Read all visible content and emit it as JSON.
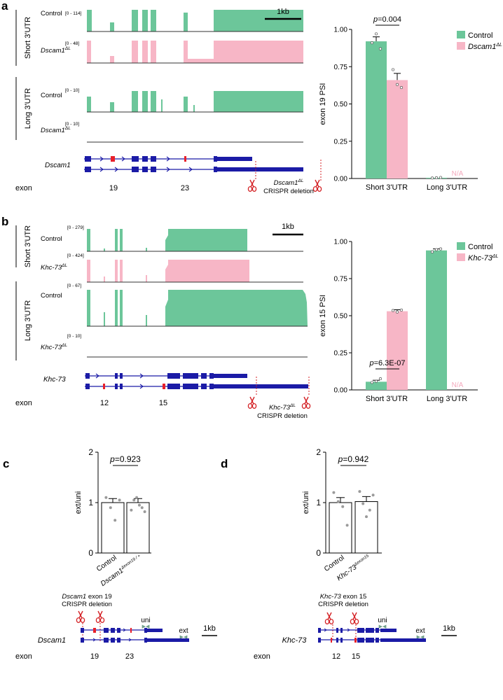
{
  "colors": {
    "control": "#6cc69a",
    "mutant": "#f7b6c6",
    "gene": "#1b1ba6",
    "exon_highlight": "#e8202a",
    "scissors": "#d42226",
    "primer": "#6f9e8a",
    "na_text": "#f4a9bd",
    "dots": "#9a9a9a"
  },
  "panel_a": {
    "label": "a",
    "short_group": "Short 3'UTR",
    "long_group": "Long 3'UTR",
    "tracks": [
      {
        "name": "Control",
        "sup": "",
        "scale": "[0 - 114]"
      },
      {
        "name": "Dscam1",
        "sup": "ΔL",
        "scale": "[0 - 48]"
      },
      {
        "name": "Control",
        "sup": "",
        "scale": "[0 - 10]"
      },
      {
        "name": "Dscam1",
        "sup": "ΔL",
        "scale": "[0 - 10]"
      }
    ],
    "scalebar": "1kb",
    "gene": "Dscam1",
    "exon_label": "exon",
    "exon_numbers": [
      "19",
      "23"
    ],
    "deletion_gene": "Dscam1",
    "deletion_sup": "ΔL",
    "deletion_text": "CRISPR deletion"
  },
  "panel_b": {
    "label": "b",
    "short_group": "Short 3'UTR",
    "long_group": "Long 3'UTR",
    "tracks": [
      {
        "name": "Control",
        "sup": "",
        "scale": "[0 - 279]"
      },
      {
        "name": "Khc-73",
        "sup": "ΔL",
        "scale": "[0 - 424]"
      },
      {
        "name": "Control",
        "sup": "",
        "scale": "[0 - 67]"
      },
      {
        "name": "Khc-73",
        "sup": "ΔL",
        "scale": "[0 - 10]"
      }
    ],
    "scalebar": "1kb",
    "gene": "Khc-73",
    "exon_label": "exon",
    "exon_numbers": [
      "12",
      "15"
    ],
    "deletion_gene": "Khc-73",
    "deletion_sup": "ΔL",
    "deletion_text": "CRISPR deletion"
  },
  "panel_c": {
    "label": "c",
    "deletion_gene": "Dscam1",
    "deletion_exon": "exon 19",
    "deletion_text": "CRISPR deletion",
    "uni": "uni",
    "ext": "ext",
    "scalebar": "1kb",
    "gene": "Dscam1",
    "exon_label": "exon",
    "exon_numbers": [
      "19",
      "23"
    ]
  },
  "panel_d": {
    "label": "d",
    "deletion_gene": "Khc-73",
    "deletion_exon": "exon 15",
    "deletion_text": "CRISPR deletion",
    "uni": "uni",
    "ext": "ext",
    "scalebar": "1kb",
    "gene": "Khc-73",
    "exon_label": "exon",
    "exon_numbers": [
      "12",
      "15"
    ]
  },
  "chart_data": [
    {
      "id": "a",
      "type": "bar",
      "ylabel": "exon 19 PSI",
      "ylim": [
        0,
        1.0
      ],
      "yticks": [
        "0.00",
        "0.25",
        "0.50",
        "0.75",
        "1.00"
      ],
      "categories": [
        "Short 3'UTR",
        "Long 3'UTR"
      ],
      "series": [
        {
          "name": "Control",
          "values": [
            0.92,
            0.005
          ],
          "errors": [
            0.03,
            0
          ]
        },
        {
          "name": "Dscam1",
          "name_sup": "ΔL",
          "values": [
            0.66,
            null
          ],
          "errors": [
            0.045,
            0
          ]
        }
      ],
      "points": [
        [
          [
            0.91,
            0.97,
            0.87
          ],
          [
            0.003,
            0.005,
            0.007
          ]
        ],
        [
          [
            0.73,
            0.63,
            0.61
          ],
          []
        ]
      ],
      "na_label": "N/A",
      "pvalue": "p=0.004",
      "legend": "top-right"
    },
    {
      "id": "b",
      "type": "bar",
      "ylabel": "exon 15 PSI",
      "ylim": [
        0,
        1.0
      ],
      "yticks": [
        "0.00",
        "0.25",
        "0.50",
        "0.75",
        "1.00"
      ],
      "categories": [
        "Short 3'UTR",
        "Long 3'UTR"
      ],
      "series": [
        {
          "name": "Control",
          "values": [
            0.055,
            0.94
          ],
          "errors": [
            0.01,
            0.01
          ]
        },
        {
          "name": "Khc-73",
          "name_sup": "ΔL",
          "values": [
            0.53,
            null
          ],
          "errors": [
            0.01,
            0
          ]
        }
      ],
      "points": [
        [
          [
            0.05,
            0.058,
            0.075
          ],
          [
            0.93,
            0.945,
            0.95
          ]
        ],
        [
          [
            0.535,
            0.525,
            0.538
          ],
          []
        ]
      ],
      "na_label": "N/A",
      "pvalue": "p=6.3E-07",
      "legend": "top-right"
    },
    {
      "id": "c",
      "type": "bar",
      "ylabel": "ext/uni",
      "ylim": [
        0,
        2
      ],
      "yticks": [
        "0",
        "1",
        "2"
      ],
      "categories": [
        "Control",
        "Dscam1"
      ],
      "category_sup": [
        "",
        "Δexon19 / +"
      ],
      "values": [
        1.0,
        1.0
      ],
      "errors": [
        0.08,
        0.08
      ],
      "points": [
        [
          1.1,
          0.9,
          0.65,
          1.05
        ],
        [
          0.85,
          1.05,
          1.1,
          0.95,
          0.9,
          0.82
        ]
      ],
      "pvalue": "p=0.923"
    },
    {
      "id": "d",
      "type": "bar",
      "ylabel": "ext/uni",
      "ylim": [
        0,
        2
      ],
      "yticks": [
        "0",
        "1",
        "2"
      ],
      "categories": [
        "Control",
        "Khc-73"
      ],
      "category_sup": [
        "",
        "Δexon15"
      ],
      "values": [
        1.0,
        1.02
      ],
      "errors": [
        0.1,
        0.1
      ],
      "points": [
        [
          1.2,
          1.02,
          0.92,
          0.55
        ],
        [
          1.22,
          0.98,
          0.72,
          0.85,
          1.15
        ]
      ],
      "pvalue": "p=0.942"
    }
  ]
}
